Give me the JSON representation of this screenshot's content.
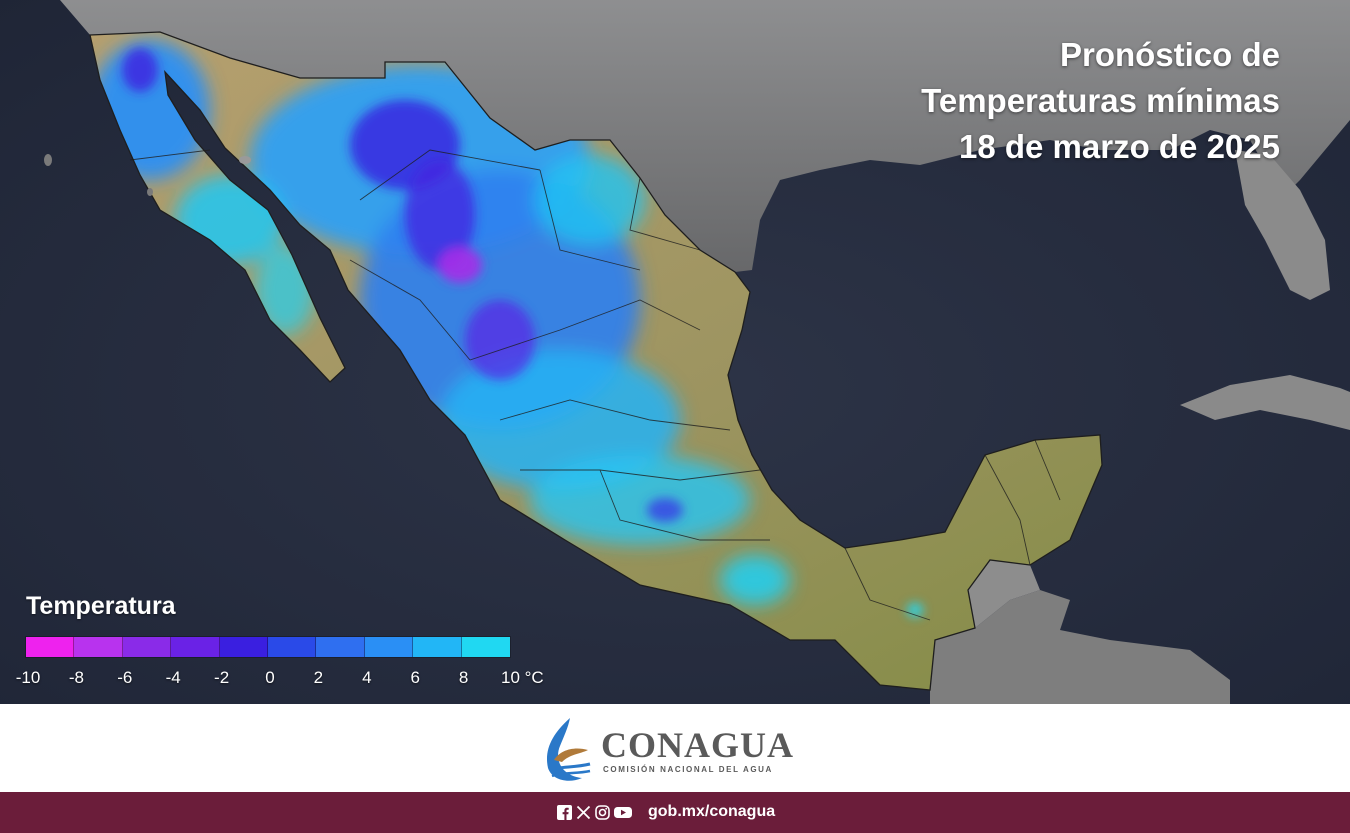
{
  "title": {
    "line1": "Pronóstico de",
    "line2": "Temperaturas mínimas",
    "line3": "18 de marzo de 2025"
  },
  "legend": {
    "title": "Temperatura",
    "ticks": [
      "-10",
      "-8",
      "-6",
      "-4",
      "-2",
      "0",
      "2",
      "4",
      "6",
      "8",
      "10 °C"
    ],
    "colors": [
      "#ee22ee",
      "#b833ee",
      "#8a2be8",
      "#6a22e6",
      "#3a1fe0",
      "#2a4ae8",
      "#2f6ff0",
      "#2a8ff5",
      "#22b6f6",
      "#20d8f2"
    ]
  },
  "brand": {
    "name": "CONAGUA",
    "subtitle": "COMISIÓN NACIONAL DEL AGUA"
  },
  "footer": {
    "social_icons": [
      "facebook-icon",
      "x-icon",
      "instagram-icon",
      "youtube-icon"
    ],
    "url": "gob.mx/conagua",
    "bg_color": "#6b1d3a"
  }
}
